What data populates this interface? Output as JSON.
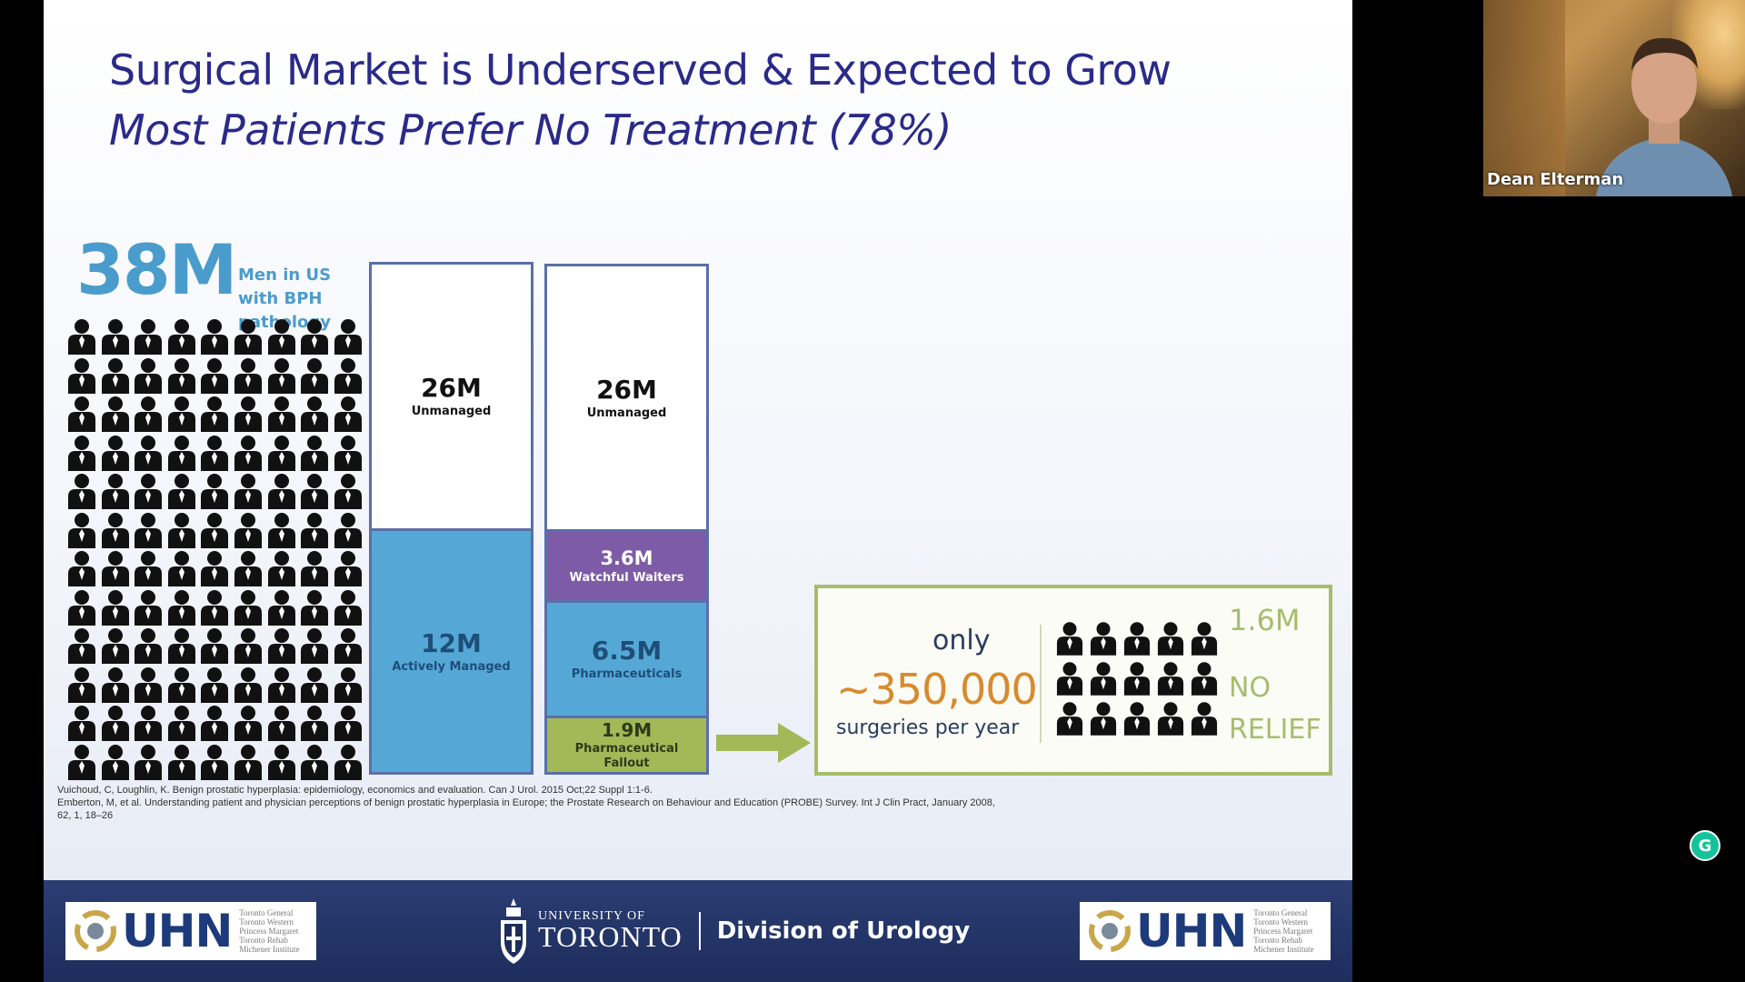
{
  "slide": {
    "title": "Surgical Market is Underserved & Expected to Grow",
    "subtitle": "Most Patients Prefer No Treatment (78%)",
    "headline_number": "38M",
    "headline_caption": "Men in US with BPH pathology",
    "bar1": {
      "top_value": "26M",
      "top_label": "Unmanaged",
      "bottom_value": "12M",
      "bottom_label": "Actively Managed"
    },
    "bar2": {
      "top_value": "26M",
      "top_label": "Unmanaged",
      "seg2_value": "3.6M",
      "seg2_label": "Watchful Waiters",
      "seg3_value": "6.5M",
      "seg3_label": "Pharmaceuticals",
      "seg4_value": "1.9M",
      "seg4_label": "Pharmaceutical Fallout"
    },
    "result": {
      "only": "only",
      "surgeries_value": "~350,000",
      "surgeries_caption": "surgeries per year",
      "no_relief_value": "1.6M",
      "no_relief_line1": "NO",
      "no_relief_line2": "RELIEF"
    },
    "references": [
      "Vuichoud, C, Loughlin, K. Benign prostatic hyperplasia: epidemiology, economics and evaluation. Can J Urol. 2015 Oct;22 Suppl 1:1-6.",
      "Emberton, M, et al.  Understanding patient and physician perceptions of benign prostatic hyperplasia in Europe;  the Prostate Research on Behaviour and Education (PROBE) Survey. Int J Clin Pract, January 2008,",
      "62, 1, 18–26"
    ],
    "footer": {
      "uhn_logo_text": "UHN",
      "uhn_hospitals": [
        "Toronto General",
        "Toronto Western",
        "Princess Margaret",
        "Toronto Rehab",
        "Michener Institute"
      ],
      "uoft_line1": "UNIVERSITY OF",
      "uoft_line2": "TORONTO",
      "division": "Division of Urology"
    }
  },
  "webcam": {
    "participant_name": "Dean Elterman"
  },
  "overlay": {
    "grammarly_icon": "G"
  },
  "colors": {
    "title": "#2a2a8a",
    "headline_blue": "#4a9ccc",
    "segment_blue": "#55a8d6",
    "segment_purple": "#7d5ba6",
    "segment_green": "#a2b957",
    "surgeries_orange": "#d88a2e",
    "footer_navy": "#1d2d5c"
  },
  "icons": [
    "person-icon",
    "right-arrow-icon",
    "uhn-swirl-icon",
    "uoft-crest-icon",
    "grammarly-icon"
  ]
}
